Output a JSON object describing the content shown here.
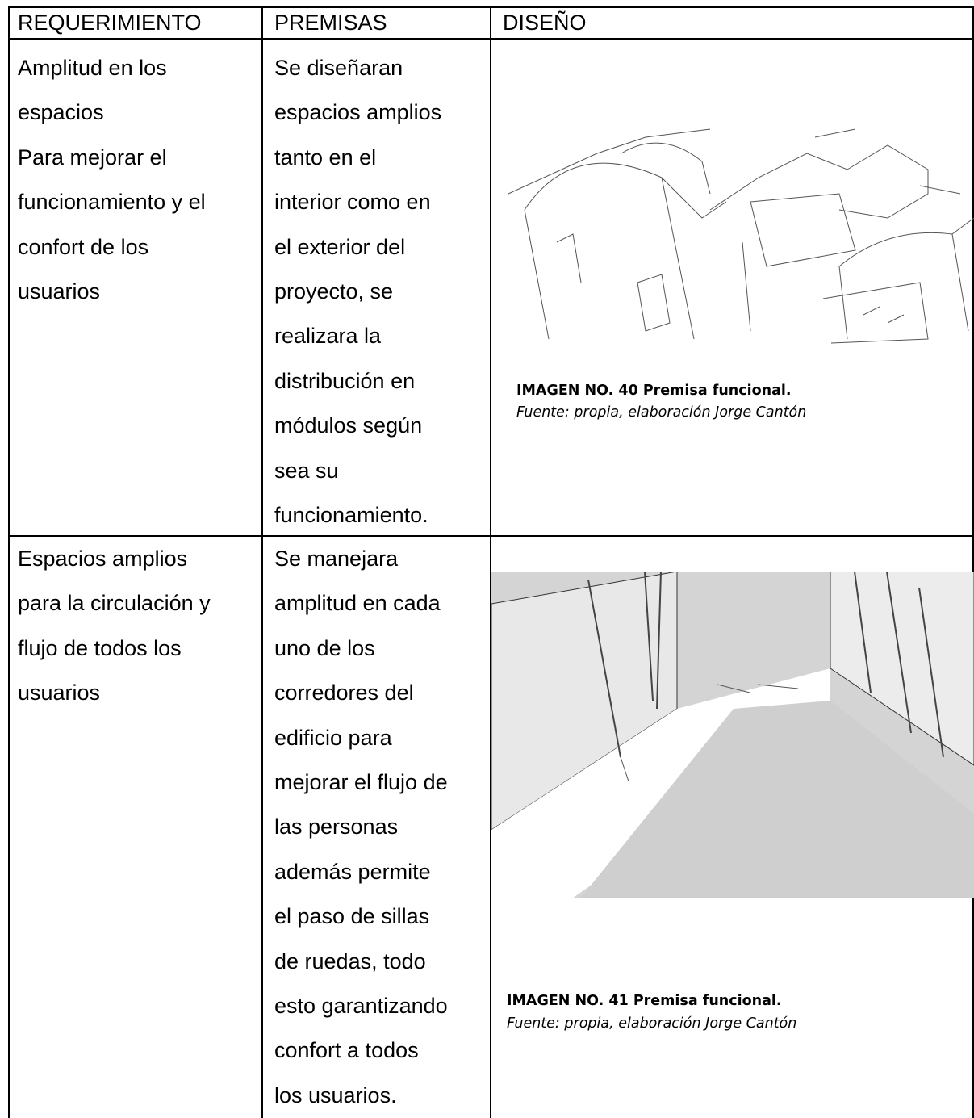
{
  "table": {
    "header": [
      "REQUERIMIENTO",
      "PREMISAS",
      "DISEÑO"
    ],
    "rows": [
      {
        "requerimiento": [
          "Amplitud en los",
          "espacios",
          "Para mejorar el",
          "funcionamiento y el",
          "confort de los",
          "usuarios"
        ],
        "premisas": [
          "Se diseñaran",
          "espacios amplios",
          "tanto en el",
          "interior como en",
          "el exterior del",
          "proyecto, se",
          "realizara la",
          "distribución en",
          "módulos según",
          "sea su",
          "funcionamiento."
        ],
        "caption": {
          "title": "IMAGEN NO. 40 Premisa funcional.",
          "source": "Fuente: propia, elaboración Jorge Cantón"
        }
      },
      {
        "requerimiento": [
          "Espacios amplios",
          "para la circulación y",
          "flujo de todos los",
          "usuarios"
        ],
        "premisas": [
          "Se manejara",
          "amplitud en cada",
          "uno de los",
          "corredores del",
          "edificio para",
          "mejorar el flujo de",
          "las personas",
          "además permite",
          "el paso de sillas",
          "de ruedas, todo",
          "esto garantizando",
          "confort a todos",
          "los usuarios."
        ],
        "caption": {
          "title": "IMAGEN NO. 41 Premisa funcional.",
          "source": "Fuente: propia, elaboración Jorge Cantón"
        }
      }
    ]
  }
}
